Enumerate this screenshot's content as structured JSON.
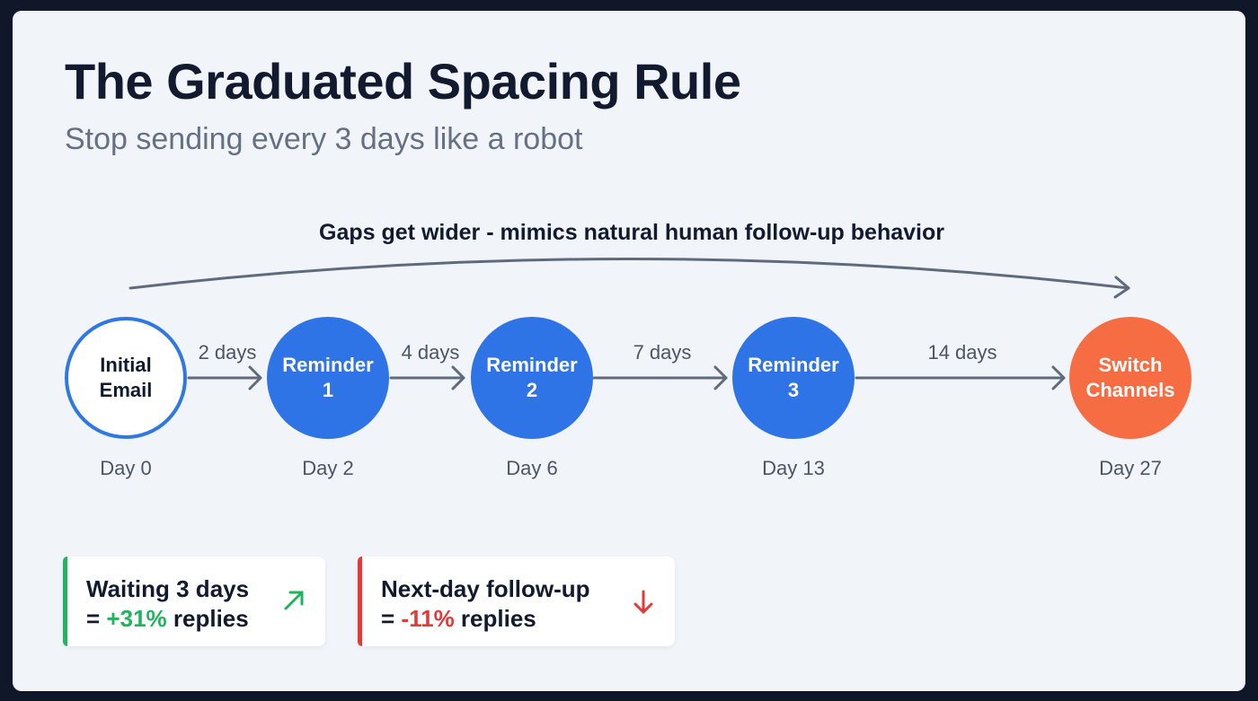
{
  "title": "The Graduated Spacing Rule",
  "subtitle": "Stop sending every 3 days like a robot",
  "caption": "Gaps get wider - mimics natural human follow-up behavior",
  "nodes": [
    {
      "line1": "Initial",
      "line2": "Email",
      "day": "Day 0"
    },
    {
      "line1": "Reminder",
      "line2": "1",
      "day": "Day 2"
    },
    {
      "line1": "Reminder",
      "line2": "2",
      "day": "Day 6"
    },
    {
      "line1": "Reminder",
      "line2": "3",
      "day": "Day 13"
    },
    {
      "line1": "Switch",
      "line2": "Channels",
      "day": "Day 27"
    }
  ],
  "gaps": [
    "2 days",
    "4 days",
    "7 days",
    "14 days"
  ],
  "stats": [
    {
      "line1": "Waiting 3 days",
      "prefix": "= ",
      "value": "+31%",
      "suffix": " replies",
      "icon": "arrow-up-right-icon",
      "color": "#22b35e"
    },
    {
      "line1": "Next-day follow-up",
      "prefix": "= ",
      "value": "-11%",
      "suffix": " replies",
      "icon": "arrow-down-icon",
      "color": "#e03a3a"
    }
  ],
  "colors": {
    "primary": "#2f74e6",
    "accent": "#f76d43",
    "text": "#111a2e",
    "muted": "#667085"
  }
}
